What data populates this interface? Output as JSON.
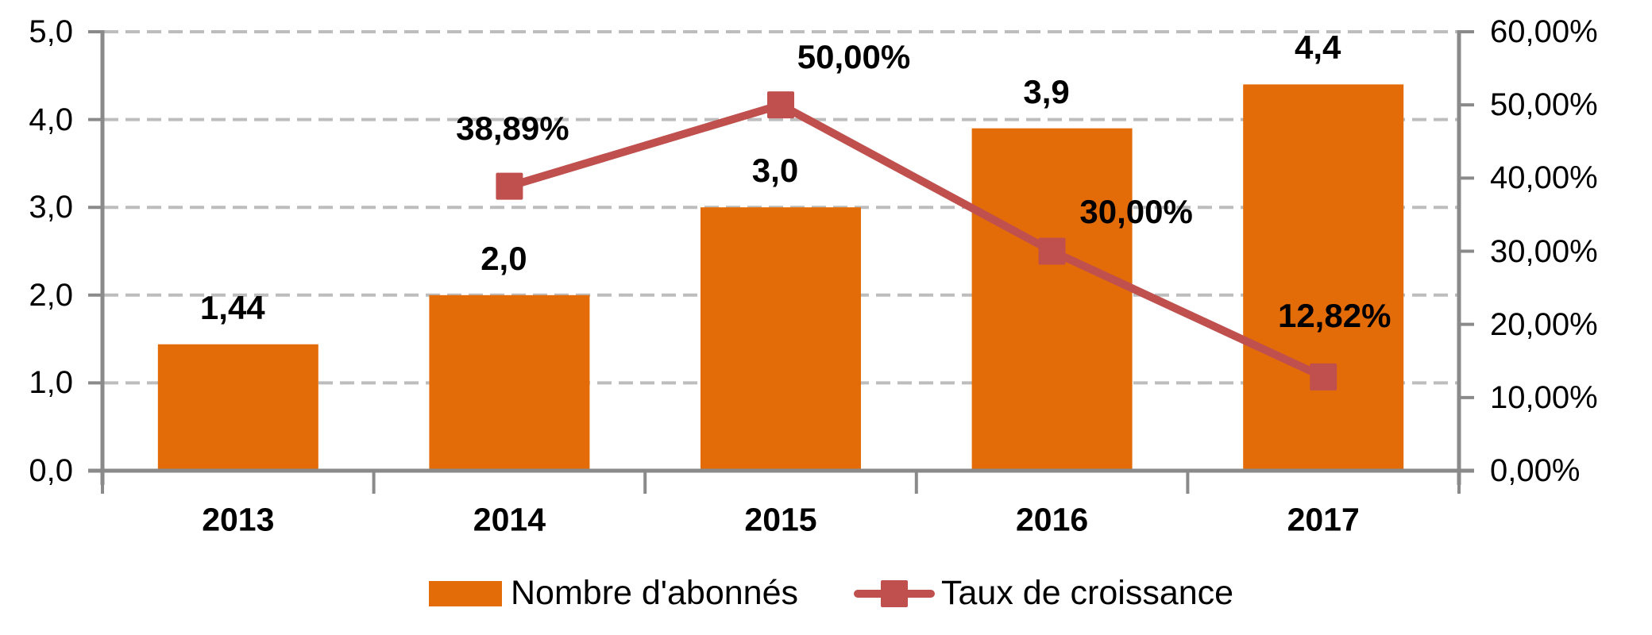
{
  "chart_data": {
    "type": "combo",
    "categories": [
      "2013",
      "2014",
      "2015",
      "2016",
      "2017"
    ],
    "series": [
      {
        "name": "Nombre d'abonnés",
        "type": "bar",
        "axis": "left",
        "values": [
          1.44,
          2.0,
          3.0,
          3.9,
          4.4
        ],
        "labels": [
          "1,44",
          "2,0",
          "3,0",
          "3,9",
          "4,4"
        ],
        "color": "#E36C09"
      },
      {
        "name": "Taux de croissance",
        "type": "line",
        "axis": "right",
        "values": [
          null,
          38.89,
          50.0,
          30.0,
          12.82
        ],
        "labels": [
          null,
          "38,89%",
          "50,00%",
          "30,00%",
          "12,82%"
        ],
        "color": "#C0504D"
      }
    ],
    "left_axis": {
      "min": 0,
      "max": 5,
      "tick_step": 1,
      "tick_labels": [
        "0,0",
        "1,0",
        "2,0",
        "3,0",
        "4,0",
        "5,0"
      ]
    },
    "right_axis": {
      "min": 0,
      "max": 60,
      "tick_step": 10,
      "tick_labels": [
        "0,00%",
        "10,00%",
        "20,00%",
        "30,00%",
        "40,00%",
        "50,00%",
        "60,00%"
      ]
    },
    "grid": "horizontal dashed, at left-axis ticks",
    "legend_position": "bottom",
    "line_label_offsets": [
      null,
      [
        4,
        -73
      ],
      [
        92,
        -60
      ],
      [
        106,
        -50
      ],
      [
        14,
        -77
      ]
    ],
    "bar_label_offset": [
      -7,
      -46
    ],
    "colors": {
      "grid": "#BDBDBD",
      "axis": "#8A8A8A",
      "text": "#000000",
      "background": "#FFFFFF"
    }
  },
  "legend": {
    "items": [
      {
        "label": "Nombre d'abonnés",
        "swatch": "bar"
      },
      {
        "label": "Taux de croissance",
        "swatch": "line-marker"
      }
    ]
  }
}
